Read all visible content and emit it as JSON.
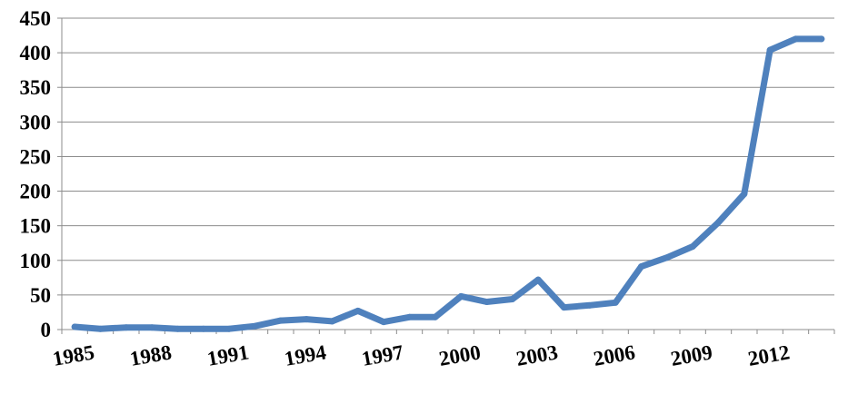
{
  "chart_data": {
    "type": "line",
    "title": "",
    "xlabel": "",
    "ylabel": "",
    "x": [
      1985,
      1986,
      1987,
      1988,
      1989,
      1990,
      1991,
      1992,
      1993,
      1994,
      1995,
      1996,
      1997,
      1998,
      1999,
      2000,
      2001,
      2002,
      2003,
      2004,
      2005,
      2006,
      2007,
      2008,
      2009,
      2010,
      2011,
      2012,
      2013,
      2014
    ],
    "series": [
      {
        "name": "",
        "color": "#4f81bd",
        "values": [
          4,
          1,
          3,
          3,
          1,
          1,
          1,
          5,
          13,
          15,
          12,
          27,
          11,
          18,
          18,
          48,
          40,
          44,
          72,
          32,
          35,
          39,
          91,
          104,
          120,
          155,
          196,
          404,
          420,
          420
        ]
      }
    ],
    "ylim": [
      0,
      450
    ],
    "yticks": [
      0,
      50,
      100,
      150,
      200,
      250,
      300,
      350,
      400,
      450
    ],
    "xtick_labels": [
      "1985",
      "1988",
      "1991",
      "1994",
      "1997",
      "2000",
      "2003",
      "2006",
      "2009",
      "2012"
    ],
    "grid": true,
    "legend": "none"
  }
}
